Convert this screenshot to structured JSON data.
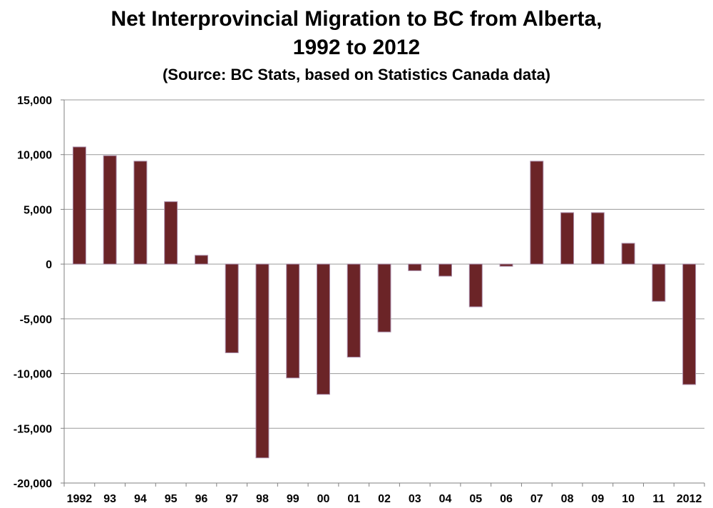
{
  "chart_data": {
    "type": "bar",
    "title": "Net Interprovincial Migration to BC from Alberta,",
    "title_line2": "1992 to 2012",
    "subtitle": "(Source: BC Stats, based on Statistics Canada data)",
    "xlabel": "",
    "ylabel": "",
    "categories": [
      "1992",
      "93",
      "94",
      "95",
      "96",
      "97",
      "98",
      "99",
      "00",
      "01",
      "02",
      "03",
      "04",
      "05",
      "06",
      "07",
      "08",
      "09",
      "10",
      "11",
      "2012"
    ],
    "values": [
      10700,
      9900,
      9400,
      5700,
      800,
      -8100,
      -17700,
      -10400,
      -11900,
      -8500,
      -6200,
      -600,
      -1100,
      -3900,
      -200,
      9400,
      4700,
      4700,
      1900,
      -3400,
      -11000
    ],
    "ylim": [
      -20000,
      15000
    ],
    "yticks": [
      15000,
      10000,
      5000,
      0,
      -5000,
      -10000,
      -15000,
      -20000
    ],
    "ytick_labels": [
      "15,000",
      "10,000",
      "5,000",
      "0",
      "-5,000",
      "-10,000",
      "-15,000",
      "-20,000"
    ],
    "grid": true,
    "legend": "none",
    "bar_color": "#6b2427",
    "bar_edge_color": "#a88aa8",
    "grid_color": "#9a9a9a"
  }
}
